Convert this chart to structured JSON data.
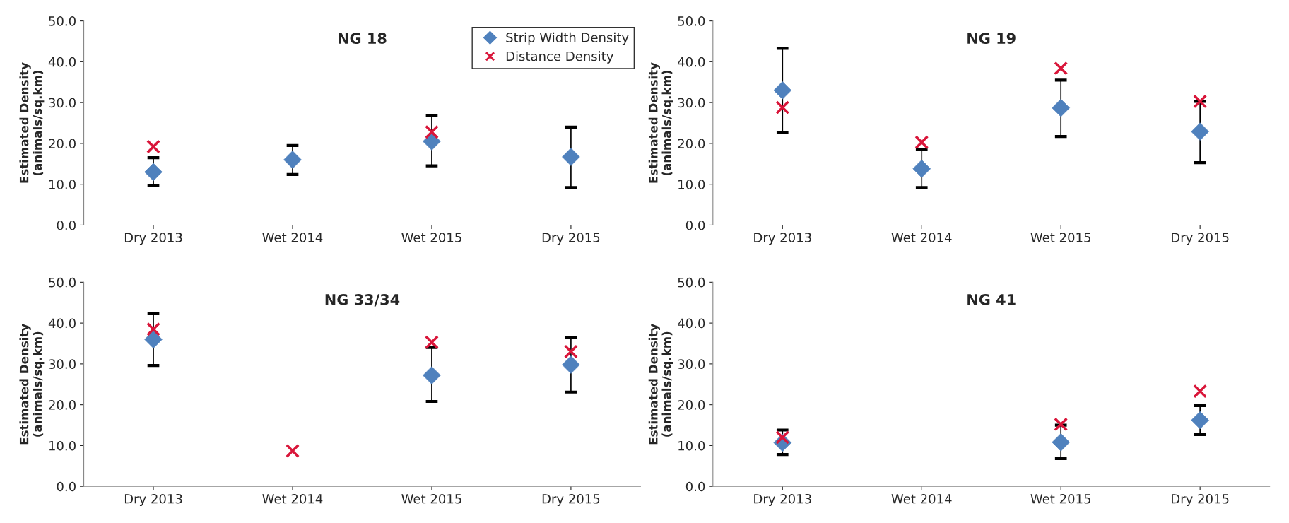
{
  "chart_data": [
    {
      "type": "scatter",
      "title": "NG 18",
      "ylabel": "Estimated Density\n(animals/sq.km)",
      "categories": [
        "Dry 2013",
        "Wet 2014",
        "Wet 2015",
        "Dry 2015"
      ],
      "ylim": [
        0,
        50
      ],
      "yticks": [
        {
          "value": 0,
          "label": "0.0"
        },
        {
          "value": 10,
          "label": "10.0"
        },
        {
          "value": 20,
          "label": "20.0"
        },
        {
          "value": 30,
          "label": "30.0"
        },
        {
          "value": 40,
          "label": "40.0"
        },
        {
          "value": 50,
          "label": "50.0"
        }
      ],
      "grid": false,
      "legend": "top right",
      "series": [
        {
          "name": "Strip Width Density",
          "color": "#4f81bd",
          "marker": "diamond",
          "values": [
            13.0,
            16.0,
            20.5,
            16.7
          ],
          "errors": [
            [
              9.6,
              16.5
            ],
            [
              12.4,
              19.5
            ],
            [
              14.5,
              26.8
            ],
            [
              9.2,
              24.0
            ]
          ]
        },
        {
          "name": "Distance Density",
          "color": "#d9163a",
          "marker": "cross",
          "values": [
            19.2,
            null,
            22.8,
            null
          ]
        }
      ]
    },
    {
      "type": "scatter",
      "title": "NG 19",
      "ylabel": "Estimated Density\n(animals/sq.km)",
      "categories": [
        "Dry 2013",
        "Wet 2014",
        "Wet 2015",
        "Dry 2015"
      ],
      "ylim": [
        0,
        50
      ],
      "yticks": [
        {
          "value": 0,
          "label": "0.0"
        },
        {
          "value": 10,
          "label": "10.0"
        },
        {
          "value": 20,
          "label": "20.0"
        },
        {
          "value": 30,
          "label": "30.0"
        },
        {
          "value": 40,
          "label": "40.0"
        },
        {
          "value": 50,
          "label": "50.0"
        }
      ],
      "grid": false,
      "series": [
        {
          "color": "#4f81bd",
          "marker": "diamond",
          "values": [
            33.0,
            13.8,
            28.7,
            22.9
          ],
          "errors": [
            [
              22.7,
              43.3
            ],
            [
              9.2,
              18.5
            ],
            [
              21.7,
              35.5
            ],
            [
              15.3,
              30.3
            ]
          ]
        },
        {
          "color": "#d9163a",
          "marker": "cross",
          "values": [
            28.8,
            20.3,
            38.4,
            30.3
          ]
        }
      ]
    },
    {
      "type": "scatter",
      "title": "NG 33/34",
      "ylabel": "Estimated Density\n(animals/sq.km)",
      "categories": [
        "Dry 2013",
        "Wet 2014",
        "Wet 2015",
        "Dry 2015"
      ],
      "ylim": [
        0,
        50
      ],
      "yticks": [
        {
          "value": 0,
          "label": "0.0"
        },
        {
          "value": 10,
          "label": "10.0"
        },
        {
          "value": 20,
          "label": "20.0"
        },
        {
          "value": 30,
          "label": "30.0"
        },
        {
          "value": 40,
          "label": "40.0"
        },
        {
          "value": 50,
          "label": "50.0"
        }
      ],
      "grid": false,
      "series": [
        {
          "color": "#4f81bd",
          "marker": "diamond",
          "values": [
            36.0,
            null,
            27.2,
            29.8
          ],
          "errors": [
            [
              29.6,
              42.3
            ],
            null,
            [
              20.8,
              34.0
            ],
            [
              23.1,
              36.5
            ]
          ]
        },
        {
          "color": "#d9163a",
          "marker": "cross",
          "values": [
            38.5,
            8.7,
            35.3,
            33.0
          ]
        }
      ]
    },
    {
      "type": "scatter",
      "title": "NG 41",
      "ylabel": "Estimated Density\n(animals/sq.km)",
      "categories": [
        "Dry 2013",
        "Wet 2014",
        "Wet 2015",
        "Dry 2015"
      ],
      "ylim": [
        0,
        50
      ],
      "yticks": [
        {
          "value": 0,
          "label": "0.0"
        },
        {
          "value": 10,
          "label": "10.0"
        },
        {
          "value": 20,
          "label": "20.0"
        },
        {
          "value": 30,
          "label": "30.0"
        },
        {
          "value": 40,
          "label": "40.0"
        },
        {
          "value": 50,
          "label": "50.0"
        }
      ],
      "grid": false,
      "series": [
        {
          "color": "#4f81bd",
          "marker": "diamond",
          "values": [
            10.7,
            null,
            10.8,
            16.2
          ],
          "errors": [
            [
              7.8,
              13.8
            ],
            null,
            [
              6.8,
              15.0
            ],
            [
              12.7,
              19.8
            ]
          ]
        },
        {
          "color": "#d9163a",
          "marker": "cross",
          "values": [
            12.0,
            null,
            15.2,
            23.3
          ]
        }
      ]
    }
  ]
}
